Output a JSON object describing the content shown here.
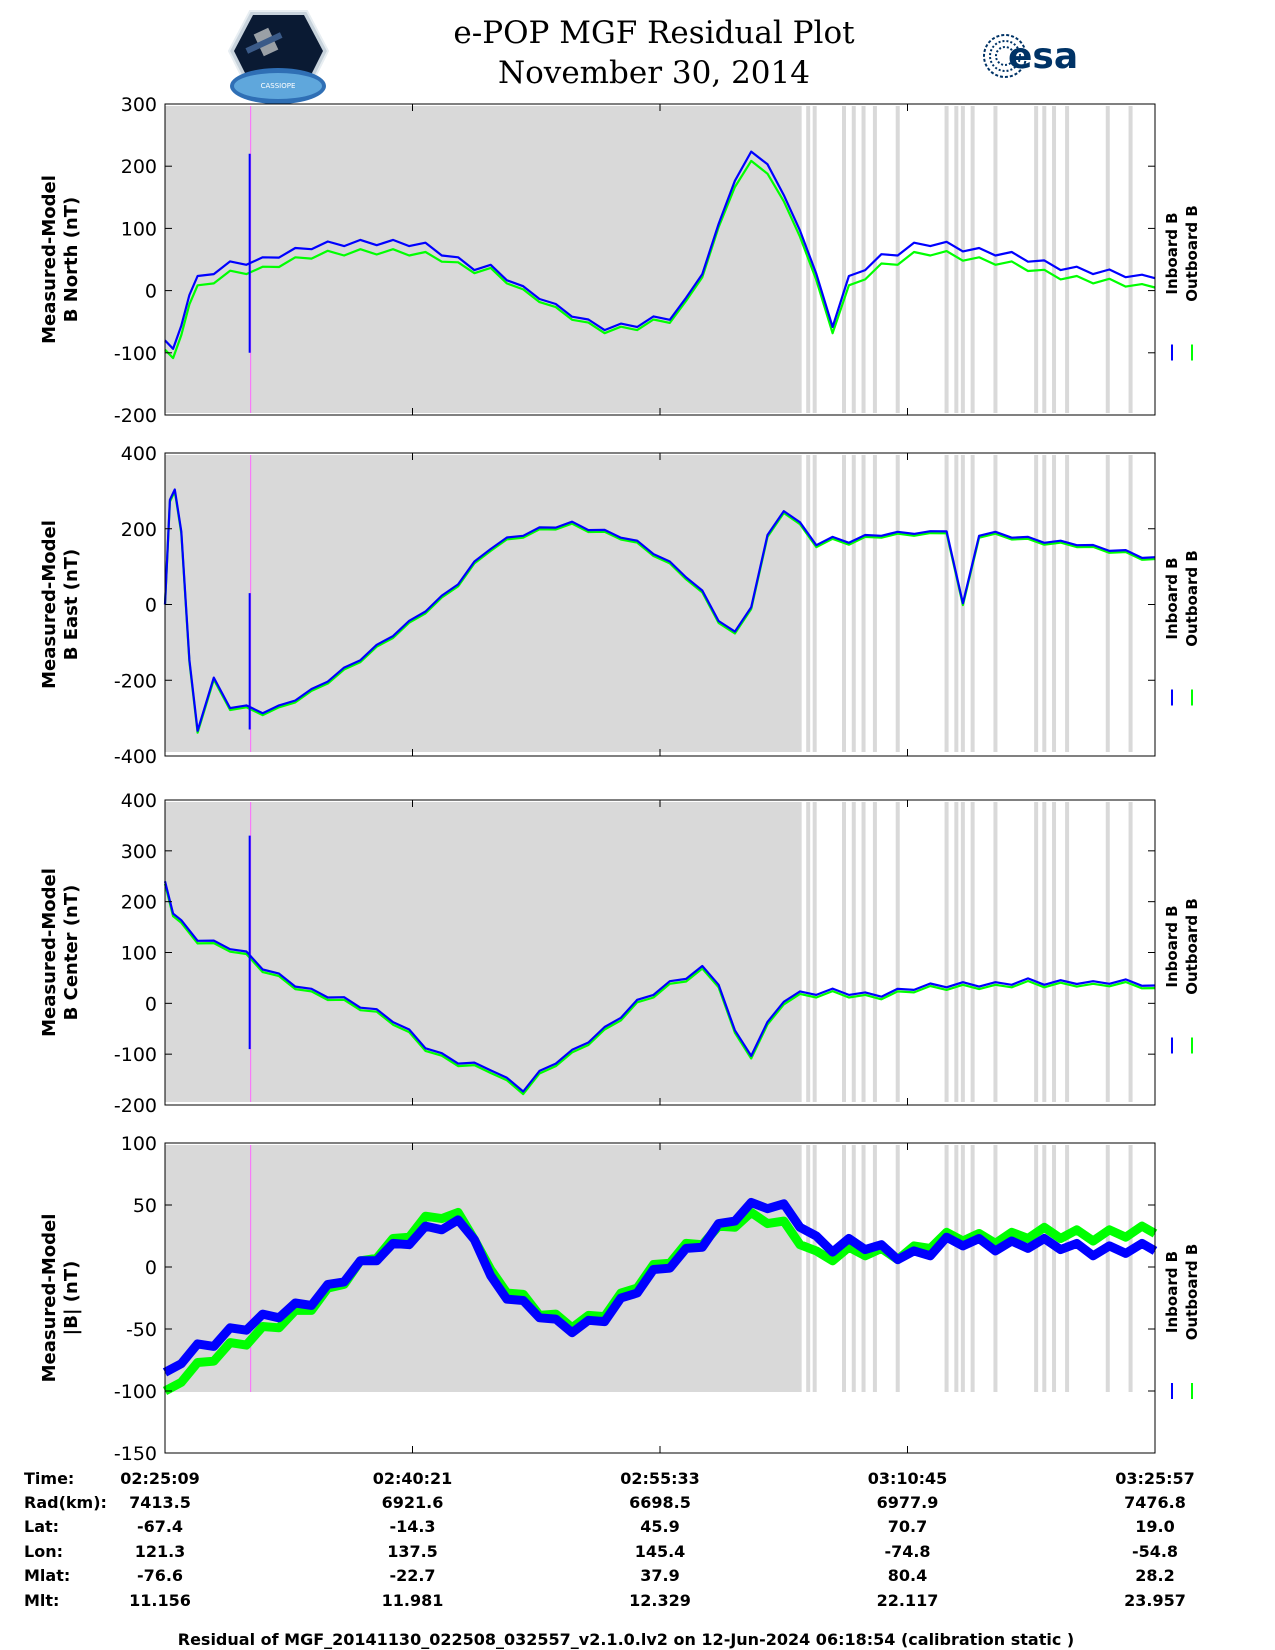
{
  "title": {
    "line1": "e-POP MGF Residual Plot",
    "line2": "November 30, 2014"
  },
  "logos": {
    "left": {
      "icon": "cassiope-mission-logo",
      "text": "CASSIOPE"
    },
    "right": {
      "icon": "esa-logo",
      "text": "esa"
    }
  },
  "colors": {
    "inboard": "#0000ff",
    "outboard": "#00ff00",
    "gap_fill": "#d9d9d9",
    "marker": "#ff66ff",
    "esa_blue": "#003366"
  },
  "legend": {
    "inboard": "Inboard B",
    "outboard": "Outboard B"
  },
  "footer": "Residual of MGF_20141130_022508_032557_v2.1.0.lv2 on 12-Jun-2024 06:18:54 (calibration static )",
  "ephemeris": {
    "labels": [
      "Time:",
      "Rad(km):",
      "Lat:",
      "Lon:",
      "Mlat:",
      "Mlt:"
    ],
    "columns": [
      [
        "02:25:09",
        "7413.5",
        "-67.4",
        "121.3",
        "-76.6",
        "11.156"
      ],
      [
        "02:40:21",
        "6921.6",
        "-14.3",
        "137.5",
        "-22.7",
        "11.981"
      ],
      [
        "02:55:33",
        "6698.5",
        "45.9",
        "145.4",
        "37.9",
        "12.329"
      ],
      [
        "03:10:45",
        "6977.9",
        "70.7",
        "-74.8",
        "80.4",
        "22.117"
      ],
      [
        "03:25:57",
        "7476.8",
        "19.0",
        "-54.8",
        "28.2",
        "23.957"
      ]
    ]
  },
  "chart_data": [
    {
      "type": "line",
      "ylabel": [
        "Measured-Model",
        "B North (nT)"
      ],
      "ylim": [
        -200,
        300
      ],
      "yticks": [
        -200,
        -100,
        0,
        100,
        200,
        300
      ],
      "xlim_min": [
        0,
        60.8
      ],
      "x_min": [
        0,
        0.5,
        1,
        1.5,
        2,
        3,
        4,
        5,
        6,
        7,
        8,
        9,
        10,
        11,
        12,
        13,
        14,
        15,
        16,
        17,
        18,
        19,
        20,
        21,
        22,
        23,
        24,
        25,
        26,
        27,
        28,
        29,
        30,
        31,
        32,
        33,
        34,
        35,
        36,
        37,
        38,
        39,
        40,
        41,
        42,
        43,
        44,
        45,
        46,
        47,
        48,
        49,
        50,
        51,
        52,
        53,
        54,
        55,
        56,
        57,
        58,
        59,
        60,
        60.8
      ],
      "series": [
        {
          "name": "Inboard B",
          "values": [
            -80,
            -90,
            -60,
            0,
            20,
            30,
            40,
            45,
            50,
            60,
            65,
            70,
            72,
            75,
            78,
            80,
            78,
            75,
            70,
            60,
            50,
            40,
            38,
            20,
            0,
            -10,
            -25,
            -35,
            -50,
            -60,
            -60,
            -55,
            -45,
            -40,
            -15,
            30,
            100,
            180,
            220,
            210,
            150,
            100,
            20,
            -55,
            20,
            40,
            55,
            60,
            70,
            75,
            75,
            70,
            65,
            60,
            55,
            50,
            45,
            40,
            35,
            30,
            27,
            25,
            22,
            20
          ]
        },
        {
          "name": "Outboard B",
          "values": [
            -95,
            -105,
            -75,
            -15,
            5,
            15,
            25,
            30,
            35,
            45,
            50,
            55,
            57,
            60,
            63,
            65,
            63,
            60,
            55,
            50,
            42,
            35,
            33,
            15,
            -5,
            -15,
            -30,
            -40,
            -55,
            -65,
            -65,
            -60,
            -50,
            -45,
            -20,
            25,
            95,
            170,
            205,
            195,
            140,
            90,
            10,
            -65,
            5,
            25,
            40,
            45,
            55,
            60,
            60,
            55,
            50,
            45,
            40,
            35,
            30,
            25,
            20,
            15,
            12,
            10,
            7,
            5
          ]
        }
      ],
      "spikes": [
        {
          "x_min": 5.2,
          "values": [
            220,
            -100
          ]
        }
      ]
    },
    {
      "type": "line",
      "ylabel": [
        "Measured-Model",
        "B East (nT)"
      ],
      "ylim": [
        -400,
        400
      ],
      "yticks": [
        -400,
        -200,
        0,
        200,
        400
      ],
      "xlim_min": [
        0,
        60.8
      ],
      "x_min": [
        0,
        0.3,
        0.6,
        1,
        1.5,
        2,
        3,
        4,
        5,
        6,
        7,
        8,
        9,
        10,
        11,
        12,
        13,
        14,
        15,
        16,
        17,
        18,
        19,
        20,
        21,
        22,
        23,
        24,
        25,
        26,
        27,
        28,
        29,
        30,
        31,
        32,
        33,
        34,
        35,
        36,
        37,
        38,
        39,
        40,
        41,
        42,
        43,
        44,
        45,
        46,
        47,
        48,
        49,
        50,
        51,
        52,
        53,
        54,
        55,
        56,
        57,
        58,
        59,
        60,
        60.8
      ],
      "series": [
        {
          "name": "Inboard B",
          "values": [
            0,
            280,
            300,
            200,
            -150,
            -330,
            -200,
            -270,
            -270,
            -280,
            -270,
            -250,
            -230,
            -200,
            -170,
            -140,
            -110,
            -80,
            -50,
            -15,
            20,
            60,
            110,
            150,
            170,
            185,
            200,
            210,
            215,
            200,
            190,
            180,
            165,
            140,
            110,
            75,
            30,
            -40,
            -75,
            0,
            180,
            250,
            210,
            160,
            175,
            170,
            180,
            185,
            185,
            190,
            190,
            200,
            0,
            185,
            185,
            180,
            175,
            170,
            165,
            160,
            150,
            145,
            140,
            130,
            125
          ]
        },
        {
          "name": "Outboard B",
          "values": [
            0,
            275,
            295,
            195,
            -155,
            -335,
            -205,
            -275,
            -275,
            -285,
            -275,
            -255,
            -235,
            -205,
            -175,
            -145,
            -115,
            -85,
            -55,
            -20,
            15,
            55,
            105,
            145,
            165,
            180,
            195,
            205,
            210,
            195,
            185,
            175,
            160,
            135,
            105,
            70,
            25,
            -45,
            -80,
            -5,
            175,
            245,
            205,
            155,
            170,
            165,
            175,
            180,
            180,
            185,
            185,
            195,
            -5,
            180,
            180,
            175,
            170,
            165,
            160,
            155,
            145,
            140,
            135,
            125,
            120
          ]
        }
      ],
      "spikes": [
        {
          "x_min": 5.2,
          "values": [
            30,
            -330
          ]
        }
      ]
    },
    {
      "type": "line",
      "ylabel": [
        "Measured-Model",
        "B Center (nT)"
      ],
      "ylim": [
        -200,
        400
      ],
      "yticks": [
        -200,
        -100,
        0,
        100,
        200,
        300,
        400
      ],
      "xlim_min": [
        0,
        60.8
      ],
      "x_min": [
        0,
        0.5,
        1,
        2,
        3,
        4,
        5,
        6,
        7,
        8,
        9,
        10,
        11,
        12,
        13,
        14,
        15,
        16,
        17,
        18,
        19,
        20,
        21,
        22,
        23,
        24,
        25,
        26,
        27,
        28,
        29,
        30,
        31,
        32,
        33,
        34,
        35,
        36,
        37,
        38,
        39,
        40,
        41,
        42,
        43,
        44,
        45,
        46,
        47,
        48,
        49,
        50,
        51,
        52,
        53,
        54,
        55,
        56,
        57,
        58,
        59,
        60,
        60.8
      ],
      "series": [
        {
          "name": "Inboard B",
          "values": [
            240,
            180,
            160,
            130,
            120,
            110,
            95,
            70,
            55,
            40,
            25,
            15,
            5,
            -5,
            -15,
            -30,
            -55,
            -85,
            -105,
            -115,
            -120,
            -125,
            -150,
            -170,
            -140,
            -115,
            -95,
            -70,
            -50,
            -25,
            0,
            20,
            40,
            55,
            70,
            40,
            -60,
            -100,
            -40,
            10,
            20,
            20,
            22,
            20,
            18,
            20,
            25,
            30,
            32,
            35,
            38,
            40,
            38,
            40,
            42,
            40,
            42,
            45,
            40,
            42,
            40,
            38,
            35
          ]
        },
        {
          "name": "Outboard B",
          "values": [
            235,
            175,
            155,
            125,
            115,
            105,
            90,
            65,
            50,
            35,
            20,
            10,
            0,
            -10,
            -20,
            -35,
            -60,
            -90,
            -110,
            -120,
            -125,
            -130,
            -155,
            -175,
            -145,
            -120,
            -100,
            -75,
            -55,
            -30,
            -5,
            15,
            35,
            50,
            65,
            35,
            -65,
            -105,
            -45,
            5,
            15,
            15,
            17,
            15,
            13,
            15,
            20,
            25,
            27,
            30,
            33,
            35,
            33,
            35,
            37,
            35,
            37,
            40,
            35,
            37,
            35,
            33,
            30
          ]
        }
      ],
      "spikes": [
        {
          "x_min": 5.2,
          "values": [
            330,
            -90
          ]
        }
      ]
    },
    {
      "type": "line",
      "ylabel": [
        "Measured-Model",
        "|B| (nT)"
      ],
      "ylim": [
        -150,
        100
      ],
      "yticks": [
        -150,
        -100,
        -50,
        0,
        50,
        100
      ],
      "xlim_min": [
        0,
        60.8
      ],
      "x_min": [
        0,
        1,
        2,
        3,
        4,
        5,
        6,
        7,
        8,
        9,
        10,
        11,
        12,
        13,
        14,
        15,
        16,
        17,
        18,
        19,
        20,
        21,
        22,
        23,
        24,
        25,
        26,
        27,
        28,
        29,
        30,
        31,
        32,
        33,
        34,
        35,
        36,
        37,
        38,
        39,
        40,
        41,
        42,
        43,
        44,
        45,
        46,
        47,
        48,
        49,
        50,
        51,
        52,
        53,
        54,
        55,
        56,
        57,
        58,
        59,
        60,
        60.8
      ],
      "series": [
        {
          "name": "Inboard B",
          "values": [
            -85,
            -75,
            -65,
            -58,
            -52,
            -48,
            -44,
            -38,
            -32,
            -25,
            -17,
            -9,
            -1,
            8,
            16,
            24,
            30,
            33,
            32,
            25,
            -10,
            -20,
            -30,
            -38,
            -48,
            -50,
            -46,
            -38,
            -28,
            -18,
            -8,
            2,
            12,
            22,
            32,
            40,
            46,
            50,
            48,
            38,
            22,
            15,
            17,
            17,
            15,
            12,
            10,
            12,
            18,
            20,
            20,
            19,
            18,
            18,
            17,
            17,
            16,
            15,
            14,
            14,
            13,
            13
          ]
        },
        {
          "name": "Outboard B",
          "values": [
            -100,
            -90,
            -80,
            -70,
            -64,
            -60,
            -54,
            -46,
            -38,
            -29,
            -20,
            -11,
            -1,
            10,
            20,
            30,
            38,
            42,
            38,
            25,
            -5,
            -15,
            -25,
            -36,
            -44,
            -46,
            -42,
            -34,
            -24,
            -14,
            -4,
            6,
            16,
            24,
            30,
            35,
            38,
            38,
            34,
            24,
            10,
            8,
            10,
            12,
            12,
            12,
            14,
            18,
            22,
            24,
            24,
            25,
            25,
            26,
            26,
            26,
            27,
            27,
            27,
            27,
            27,
            27
          ]
        }
      ],
      "spikes": []
    }
  ]
}
